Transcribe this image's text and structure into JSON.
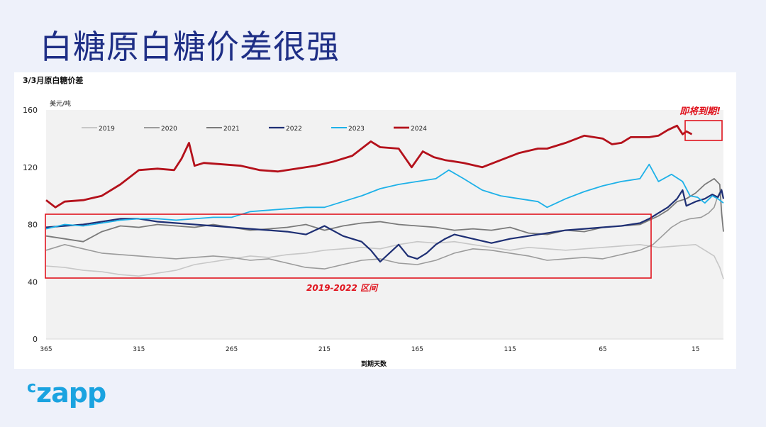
{
  "slide": {
    "title": "白糖原白糖价差很强"
  },
  "logo": {
    "text": "czapp",
    "text_first": "c",
    "text_rest": "zapp"
  },
  "chart_data": {
    "type": "line",
    "title": "3/3月原白糖价差",
    "unit_label": "美元/吨",
    "xlabel": "到期天数",
    "xlim": [
      365,
      0
    ],
    "ylim": [
      0,
      160
    ],
    "x_ticks": [
      "365",
      "315",
      "265",
      "215",
      "165",
      "115",
      "65",
      "15"
    ],
    "x_tick_values": [
      365,
      315,
      265,
      215,
      165,
      115,
      65,
      15
    ],
    "y_ticks": [
      "0",
      "40",
      "80",
      "120",
      "160"
    ],
    "y_tick_values": [
      0,
      40,
      80,
      120,
      160
    ],
    "grid": false,
    "legend_position": "top",
    "series": [
      {
        "name": "2019",
        "color": "#c7c7c7",
        "width": 1.6,
        "points": [
          [
            365,
            51
          ],
          [
            355,
            50
          ],
          [
            345,
            48
          ],
          [
            335,
            47
          ],
          [
            325,
            45
          ],
          [
            315,
            44
          ],
          [
            305,
            46
          ],
          [
            295,
            48
          ],
          [
            285,
            52
          ],
          [
            275,
            54
          ],
          [
            265,
            56
          ],
          [
            255,
            58
          ],
          [
            245,
            57
          ],
          [
            235,
            59
          ],
          [
            225,
            60
          ],
          [
            215,
            62
          ],
          [
            205,
            63
          ],
          [
            195,
            64
          ],
          [
            185,
            63
          ],
          [
            175,
            66
          ],
          [
            165,
            68
          ],
          [
            155,
            67
          ],
          [
            145,
            68
          ],
          [
            135,
            66
          ],
          [
            125,
            64
          ],
          [
            115,
            62
          ],
          [
            105,
            64
          ],
          [
            95,
            63
          ],
          [
            85,
            62
          ],
          [
            75,
            63
          ],
          [
            65,
            64
          ],
          [
            55,
            65
          ],
          [
            45,
            66
          ],
          [
            35,
            64
          ],
          [
            25,
            65
          ],
          [
            15,
            66
          ],
          [
            10,
            62
          ],
          [
            5,
            58
          ],
          [
            2,
            50
          ],
          [
            0,
            42
          ]
        ]
      },
      {
        "name": "2020",
        "color": "#9b9b9b",
        "width": 1.6,
        "points": [
          [
            365,
            62
          ],
          [
            355,
            66
          ],
          [
            345,
            63
          ],
          [
            335,
            60
          ],
          [
            325,
            59
          ],
          [
            315,
            58
          ],
          [
            305,
            57
          ],
          [
            295,
            56
          ],
          [
            285,
            57
          ],
          [
            275,
            58
          ],
          [
            265,
            57
          ],
          [
            255,
            55
          ],
          [
            245,
            56
          ],
          [
            235,
            53
          ],
          [
            225,
            50
          ],
          [
            215,
            49
          ],
          [
            205,
            52
          ],
          [
            195,
            55
          ],
          [
            185,
            56
          ],
          [
            175,
            53
          ],
          [
            165,
            52
          ],
          [
            155,
            55
          ],
          [
            145,
            60
          ],
          [
            135,
            63
          ],
          [
            125,
            62
          ],
          [
            115,
            60
          ],
          [
            105,
            58
          ],
          [
            95,
            55
          ],
          [
            85,
            56
          ],
          [
            75,
            57
          ],
          [
            65,
            56
          ],
          [
            55,
            59
          ],
          [
            45,
            62
          ],
          [
            38,
            66
          ],
          [
            33,
            72
          ],
          [
            28,
            78
          ],
          [
            23,
            82
          ],
          [
            18,
            84
          ],
          [
            12,
            85
          ],
          [
            8,
            88
          ],
          [
            5,
            92
          ],
          [
            3,
            100
          ],
          [
            1,
            105
          ]
        ]
      },
      {
        "name": "2021",
        "color": "#7a7a7a",
        "width": 1.8,
        "points": [
          [
            365,
            72
          ],
          [
            355,
            70
          ],
          [
            345,
            68
          ],
          [
            335,
            75
          ],
          [
            325,
            79
          ],
          [
            315,
            78
          ],
          [
            305,
            80
          ],
          [
            295,
            79
          ],
          [
            285,
            78
          ],
          [
            275,
            80
          ],
          [
            265,
            78
          ],
          [
            255,
            76
          ],
          [
            245,
            77
          ],
          [
            235,
            78
          ],
          [
            225,
            80
          ],
          [
            215,
            76
          ],
          [
            205,
            79
          ],
          [
            195,
            81
          ],
          [
            185,
            82
          ],
          [
            175,
            80
          ],
          [
            165,
            79
          ],
          [
            155,
            78
          ],
          [
            145,
            76
          ],
          [
            135,
            77
          ],
          [
            125,
            76
          ],
          [
            115,
            78
          ],
          [
            105,
            74
          ],
          [
            95,
            73
          ],
          [
            85,
            76
          ],
          [
            75,
            75
          ],
          [
            65,
            78
          ],
          [
            55,
            79
          ],
          [
            45,
            80
          ],
          [
            35,
            86
          ],
          [
            30,
            90
          ],
          [
            25,
            96
          ],
          [
            20,
            98
          ],
          [
            15,
            102
          ],
          [
            10,
            108
          ],
          [
            5,
            112
          ],
          [
            2,
            108
          ],
          [
            1,
            88
          ],
          [
            0,
            75
          ]
        ]
      },
      {
        "name": "2022",
        "color": "#1e2f74",
        "width": 2.2,
        "points": [
          [
            365,
            78
          ],
          [
            355,
            79
          ],
          [
            345,
            80
          ],
          [
            335,
            82
          ],
          [
            325,
            84
          ],
          [
            315,
            84
          ],
          [
            305,
            82
          ],
          [
            295,
            81
          ],
          [
            285,
            80
          ],
          [
            275,
            79
          ],
          [
            265,
            78
          ],
          [
            255,
            77
          ],
          [
            245,
            76
          ],
          [
            235,
            75
          ],
          [
            225,
            73
          ],
          [
            215,
            79
          ],
          [
            205,
            72
          ],
          [
            195,
            68
          ],
          [
            190,
            62
          ],
          [
            185,
            54
          ],
          [
            180,
            60
          ],
          [
            175,
            66
          ],
          [
            170,
            58
          ],
          [
            165,
            56
          ],
          [
            160,
            60
          ],
          [
            155,
            66
          ],
          [
            150,
            70
          ],
          [
            145,
            73
          ],
          [
            135,
            70
          ],
          [
            125,
            67
          ],
          [
            115,
            70
          ],
          [
            105,
            72
          ],
          [
            95,
            74
          ],
          [
            85,
            76
          ],
          [
            75,
            77
          ],
          [
            65,
            78
          ],
          [
            55,
            79
          ],
          [
            45,
            81
          ],
          [
            40,
            84
          ],
          [
            35,
            88
          ],
          [
            30,
            92
          ],
          [
            25,
            98
          ],
          [
            22,
            104
          ],
          [
            20,
            93
          ],
          [
            15,
            96
          ],
          [
            10,
            98
          ],
          [
            6,
            101
          ],
          [
            3,
            99
          ],
          [
            1,
            104
          ],
          [
            0,
            98
          ]
        ]
      },
      {
        "name": "2023",
        "color": "#1eb1e8",
        "width": 1.8,
        "points": [
          [
            365,
            77
          ],
          [
            355,
            80
          ],
          [
            345,
            79
          ],
          [
            335,
            81
          ],
          [
            325,
            83
          ],
          [
            315,
            84
          ],
          [
            305,
            84
          ],
          [
            295,
            83
          ],
          [
            285,
            84
          ],
          [
            275,
            85
          ],
          [
            265,
            85
          ],
          [
            255,
            89
          ],
          [
            245,
            90
          ],
          [
            235,
            91
          ],
          [
            225,
            92
          ],
          [
            215,
            92
          ],
          [
            205,
            96
          ],
          [
            195,
            100
          ],
          [
            185,
            105
          ],
          [
            175,
            108
          ],
          [
            165,
            110
          ],
          [
            155,
            112
          ],
          [
            148,
            118
          ],
          [
            140,
            112
          ],
          [
            130,
            104
          ],
          [
            120,
            100
          ],
          [
            110,
            98
          ],
          [
            100,
            96
          ],
          [
            95,
            92
          ],
          [
            85,
            98
          ],
          [
            75,
            103
          ],
          [
            65,
            107
          ],
          [
            55,
            110
          ],
          [
            45,
            112
          ],
          [
            40,
            122
          ],
          [
            35,
            110
          ],
          [
            28,
            115
          ],
          [
            22,
            110
          ],
          [
            18,
            100
          ],
          [
            14,
            99
          ],
          [
            10,
            95
          ],
          [
            6,
            100
          ],
          [
            3,
            98
          ],
          [
            0,
            95
          ]
        ]
      },
      {
        "name": "2024",
        "color": "#b4111b",
        "width": 2.8,
        "points": [
          [
            365,
            97
          ],
          [
            360,
            92
          ],
          [
            355,
            96
          ],
          [
            345,
            97
          ],
          [
            335,
            100
          ],
          [
            325,
            108
          ],
          [
            315,
            118
          ],
          [
            305,
            119
          ],
          [
            296,
            118
          ],
          [
            292,
            126
          ],
          [
            288,
            137
          ],
          [
            285,
            121
          ],
          [
            280,
            123
          ],
          [
            270,
            122
          ],
          [
            260,
            121
          ],
          [
            250,
            118
          ],
          [
            240,
            117
          ],
          [
            230,
            119
          ],
          [
            220,
            121
          ],
          [
            210,
            124
          ],
          [
            200,
            128
          ],
          [
            195,
            133
          ],
          [
            190,
            138
          ],
          [
            185,
            134
          ],
          [
            175,
            133
          ],
          [
            168,
            120
          ],
          [
            162,
            131
          ],
          [
            156,
            127
          ],
          [
            150,
            125
          ],
          [
            140,
            123
          ],
          [
            130,
            120
          ],
          [
            120,
            125
          ],
          [
            110,
            130
          ],
          [
            100,
            133
          ],
          [
            95,
            133
          ],
          [
            85,
            137
          ],
          [
            75,
            142
          ],
          [
            65,
            140
          ],
          [
            60,
            136
          ],
          [
            55,
            137
          ],
          [
            50,
            141
          ],
          [
            40,
            141
          ],
          [
            35,
            142
          ],
          [
            30,
            146
          ],
          [
            25,
            149
          ],
          [
            22,
            143
          ],
          [
            20,
            145
          ],
          [
            17,
            143
          ]
        ]
      }
    ],
    "annotations": {
      "expiry_label": "即将到期!",
      "range_label": "2019-2022 区间"
    }
  }
}
